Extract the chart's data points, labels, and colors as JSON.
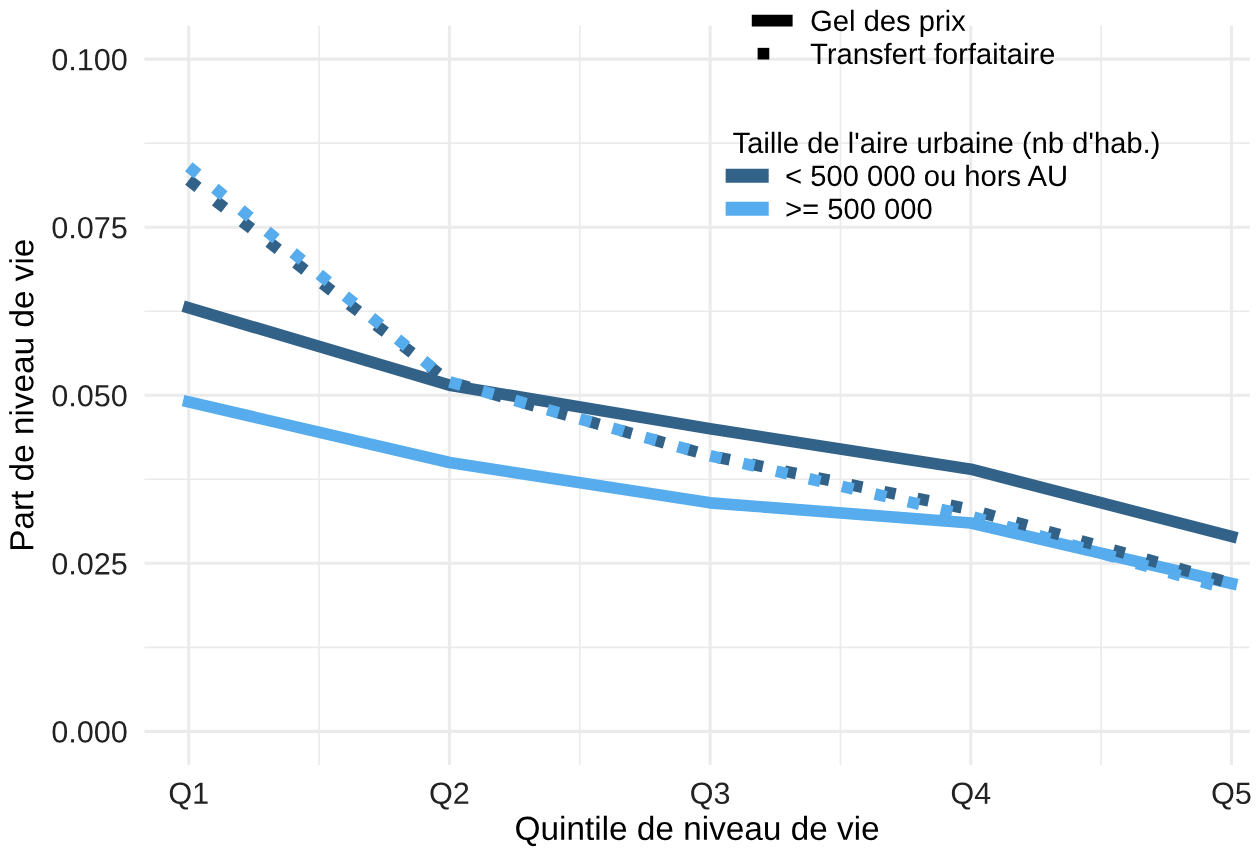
{
  "chart_data": {
    "type": "line",
    "xlabel": "Quintile de niveau de vie",
    "ylabel": "Part de niveau de vie",
    "categories": [
      "Q1",
      "Q2",
      "Q3",
      "Q4",
      "Q5"
    ],
    "legend_title": "Taille de l'aire urbaine (nb d'hab.)",
    "annotations": [
      "Gel des prix",
      "Transfert forfaitaire"
    ],
    "series": [
      {
        "name": "< 500 000 ou hors AU",
        "color": "#336289",
        "line_style": "solid",
        "values": [
          0.063,
          0.0515,
          0.045,
          0.039,
          0.029
        ]
      },
      {
        "name": ">= 500 000",
        "color": "#56acec",
        "line_style": "solid",
        "values": [
          0.049,
          0.04,
          0.034,
          0.031,
          0.022
        ]
      },
      {
        "color": "#336289",
        "line_style": "dotted",
        "values": [
          0.082,
          0.052,
          0.041,
          0.033,
          0.022
        ]
      },
      {
        "color": "#56acec",
        "line_style": "dotted",
        "values": [
          0.084,
          0.052,
          0.041,
          0.032,
          0.021
        ]
      }
    ],
    "ylim": [
      -0.005,
      0.105
    ],
    "yticks": [
      {
        "value": 0,
        "label": "0.000"
      },
      {
        "value": 0.025,
        "label": "0.025"
      },
      {
        "value": 0.05,
        "label": "0.050"
      },
      {
        "value": 0.075,
        "label": "0.075"
      },
      {
        "value": 0.1,
        "label": "0.100"
      }
    ],
    "grid": true,
    "legend": "top right"
  }
}
